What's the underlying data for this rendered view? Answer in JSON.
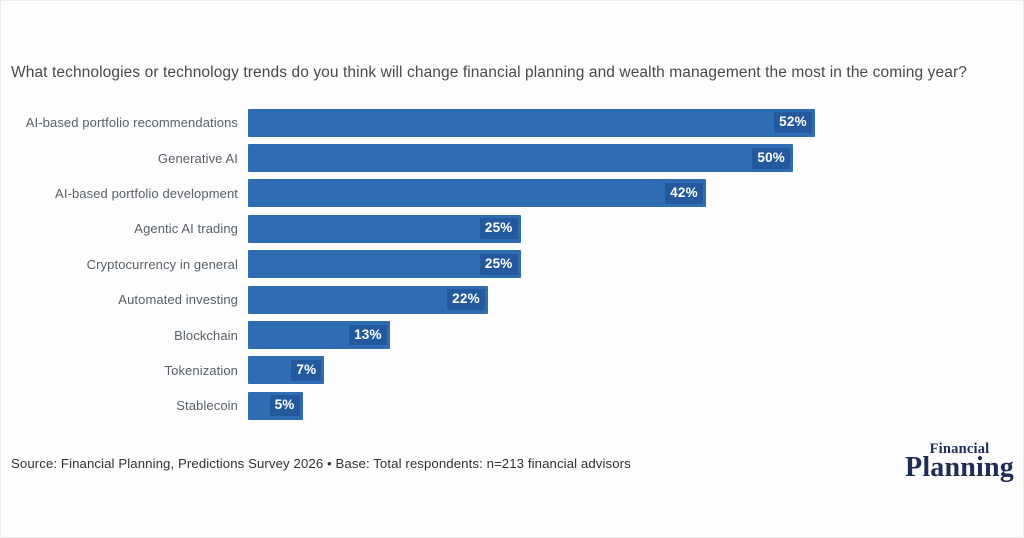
{
  "title": "What technologies or technology trends do you think will change financial planning and wealth management the most in the coming year?",
  "chart_data": {
    "type": "bar",
    "orientation": "horizontal",
    "categories": [
      "AI-based portfolio recommendations",
      "Generative AI",
      "AI-based portfolio development",
      "Agentic AI trading",
      "Cryptocurrency in general",
      "Automated investing",
      "Blockchain",
      "Tokenization",
      "Stablecoin"
    ],
    "values": [
      52,
      50,
      42,
      25,
      25,
      22,
      13,
      7,
      5
    ],
    "value_suffix": "%",
    "xlim": [
      0,
      70
    ],
    "grid": false,
    "legend": false,
    "axis_visible": false,
    "bar_color": "#2e6db4",
    "value_box_color": "#245a9d",
    "value_text_color": "#ffffff"
  },
  "source_note": "Source: Financial Planning, Predictions Survey 2026 • Base: Total respondents: n=213 financial advisors",
  "logo": {
    "line1": "Financial",
    "line2": "Planning",
    "color": "#1e2c56"
  },
  "colors": {
    "background": "#fdfdfd",
    "title_text": "#464a4d",
    "label_text": "#58606a",
    "source_text": "#303030"
  }
}
